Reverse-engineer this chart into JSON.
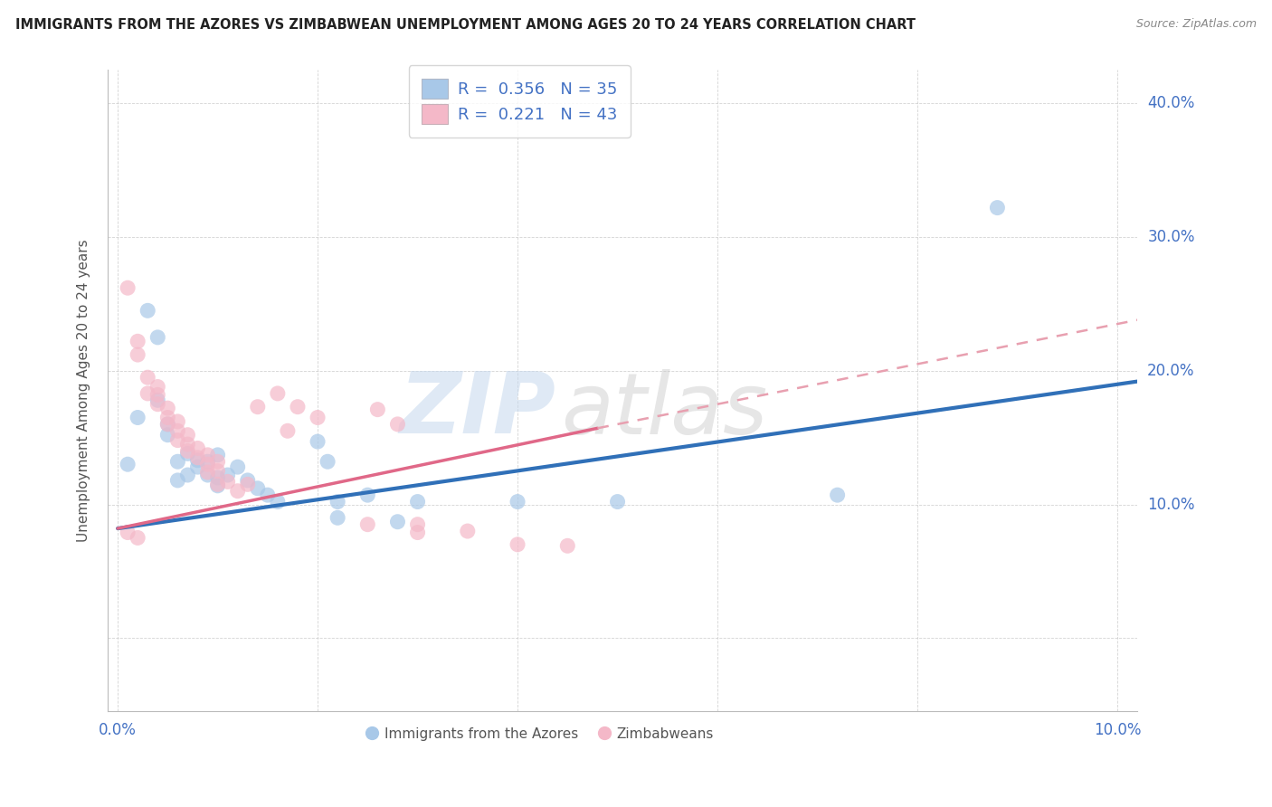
{
  "title": "IMMIGRANTS FROM THE AZORES VS ZIMBABWEAN UNEMPLOYMENT AMONG AGES 20 TO 24 YEARS CORRELATION CHART",
  "source": "Source: ZipAtlas.com",
  "ylabel": "Unemployment Among Ages 20 to 24 years",
  "xlim": [
    -0.001,
    0.102
  ],
  "ylim": [
    -0.055,
    0.425
  ],
  "xticks": [
    0.0,
    0.02,
    0.04,
    0.06,
    0.08,
    0.1
  ],
  "yticks": [
    0.0,
    0.1,
    0.2,
    0.3,
    0.4
  ],
  "xtick_labels": [
    "0.0%",
    "",
    "",
    "",
    "",
    "10.0%"
  ],
  "ytick_labels": [
    "",
    "10.0%",
    "20.0%",
    "30.0%",
    "40.0%"
  ],
  "R_blue": 0.356,
  "N_blue": 35,
  "R_pink": 0.221,
  "N_pink": 43,
  "blue_color": "#a8c8e8",
  "pink_color": "#f4b8c8",
  "blue_line_color": "#3070b8",
  "pink_line_color": "#e06888",
  "pink_dash_color": "#e8a0b0",
  "watermark_text": "ZIP",
  "watermark_text2": "atlas",
  "legend_label_blue": "Immigrants from the Azores",
  "legend_label_pink": "Zimbabweans",
  "blue_dots": [
    [
      0.001,
      0.13
    ],
    [
      0.002,
      0.165
    ],
    [
      0.003,
      0.245
    ],
    [
      0.004,
      0.225
    ],
    [
      0.004,
      0.178
    ],
    [
      0.005,
      0.152
    ],
    [
      0.005,
      0.16
    ],
    [
      0.006,
      0.132
    ],
    [
      0.006,
      0.118
    ],
    [
      0.007,
      0.122
    ],
    [
      0.007,
      0.138
    ],
    [
      0.008,
      0.133
    ],
    [
      0.008,
      0.128
    ],
    [
      0.009,
      0.122
    ],
    [
      0.009,
      0.132
    ],
    [
      0.01,
      0.137
    ],
    [
      0.01,
      0.12
    ],
    [
      0.01,
      0.114
    ],
    [
      0.011,
      0.122
    ],
    [
      0.012,
      0.128
    ],
    [
      0.013,
      0.118
    ],
    [
      0.014,
      0.112
    ],
    [
      0.015,
      0.107
    ],
    [
      0.016,
      0.102
    ],
    [
      0.02,
      0.147
    ],
    [
      0.021,
      0.132
    ],
    [
      0.022,
      0.102
    ],
    [
      0.022,
      0.09
    ],
    [
      0.025,
      0.107
    ],
    [
      0.028,
      0.087
    ],
    [
      0.03,
      0.102
    ],
    [
      0.04,
      0.102
    ],
    [
      0.05,
      0.102
    ],
    [
      0.072,
      0.107
    ],
    [
      0.088,
      0.322
    ]
  ],
  "pink_dots": [
    [
      0.001,
      0.262
    ],
    [
      0.002,
      0.222
    ],
    [
      0.002,
      0.212
    ],
    [
      0.003,
      0.195
    ],
    [
      0.003,
      0.183
    ],
    [
      0.004,
      0.188
    ],
    [
      0.004,
      0.182
    ],
    [
      0.004,
      0.175
    ],
    [
      0.005,
      0.172
    ],
    [
      0.005,
      0.165
    ],
    [
      0.005,
      0.16
    ],
    [
      0.006,
      0.162
    ],
    [
      0.006,
      0.155
    ],
    [
      0.006,
      0.148
    ],
    [
      0.007,
      0.152
    ],
    [
      0.007,
      0.145
    ],
    [
      0.007,
      0.14
    ],
    [
      0.008,
      0.142
    ],
    [
      0.008,
      0.135
    ],
    [
      0.009,
      0.137
    ],
    [
      0.009,
      0.13
    ],
    [
      0.009,
      0.124
    ],
    [
      0.01,
      0.132
    ],
    [
      0.01,
      0.125
    ],
    [
      0.01,
      0.115
    ],
    [
      0.011,
      0.117
    ],
    [
      0.012,
      0.11
    ],
    [
      0.013,
      0.115
    ],
    [
      0.014,
      0.173
    ],
    [
      0.016,
      0.183
    ],
    [
      0.017,
      0.155
    ],
    [
      0.018,
      0.173
    ],
    [
      0.02,
      0.165
    ],
    [
      0.025,
      0.085
    ],
    [
      0.026,
      0.171
    ],
    [
      0.028,
      0.16
    ],
    [
      0.03,
      0.085
    ],
    [
      0.03,
      0.079
    ],
    [
      0.035,
      0.08
    ],
    [
      0.04,
      0.07
    ],
    [
      0.045,
      0.069
    ],
    [
      0.001,
      0.079
    ],
    [
      0.002,
      0.075
    ]
  ],
  "blue_trend": [
    0.0,
    0.082,
    0.102,
    0.192
  ],
  "pink_trend_solid": [
    0.0,
    0.082,
    0.048,
    0.157
  ],
  "pink_trend_dash": [
    0.048,
    0.157,
    0.102,
    0.238
  ]
}
